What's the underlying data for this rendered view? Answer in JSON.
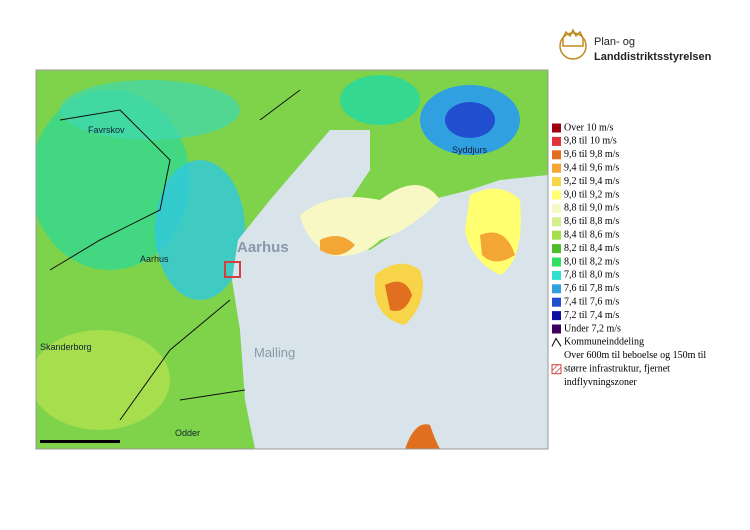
{
  "header": {
    "logo_lines": [
      "Plan- og",
      "Landdistriktsstyrelsen"
    ]
  },
  "map": {
    "labels": [
      "Aarhus",
      "Favrskov",
      "Syddjurs",
      "Aarhus",
      "Skanderborg",
      "Malling",
      "Odder"
    ]
  },
  "legend": {
    "items": [
      {
        "label": "Over 10 m/s",
        "color": "#a00010"
      },
      {
        "label": "9,8 til 10 m/s",
        "color": "#e0303a"
      },
      {
        "label": "9,6 til 9,8 m/s",
        "color": "#e07020"
      },
      {
        "label": "9,4 til 9,6 m/s",
        "color": "#f3a634"
      },
      {
        "label": "9,2 til 9,4 m/s",
        "color": "#f8d448"
      },
      {
        "label": "9,0 til 9,2 m/s",
        "color": "#ffff70"
      },
      {
        "label": "8,8 til 9,0 m/s",
        "color": "#f8f8c4"
      },
      {
        "label": "8,6 til 8,8 m/s",
        "color": "#d4f08c"
      },
      {
        "label": "8,4 til 8,6 m/s",
        "color": "#a6de4e"
      },
      {
        "label": "8,2 til 8,4 m/s",
        "color": "#4cbe2c"
      },
      {
        "label": "8,0 til 8,2 m/s",
        "color": "#30e060"
      },
      {
        "label": "7,8 til 8,0 m/s",
        "color": "#30e0d0"
      },
      {
        "label": "7,6 til 7,8 m/s",
        "color": "#30a0e0"
      },
      {
        "label": "7,4 til 7,6 m/s",
        "color": "#2050d0"
      },
      {
        "label": "7,2 til 7,4 m/s",
        "color": "#1010a0"
      },
      {
        "label": "Under 7,2 m/s",
        "color": "#400060"
      }
    ],
    "boundary": "Kommuneinddeling",
    "exclusion": [
      "Over 600m til beboelse og 150m til",
      "større infrastruktur, fjernet",
      "indflyvningszoner"
    ]
  }
}
